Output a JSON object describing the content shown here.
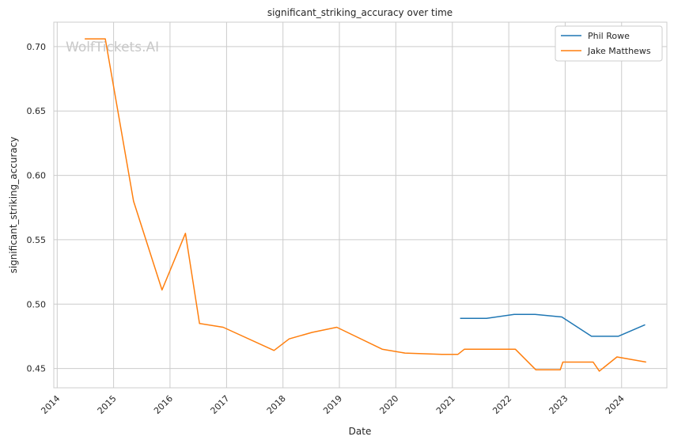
{
  "watermark": "WolfTickets.AI",
  "chart_data": {
    "type": "line",
    "title": "significant_striking_accuracy over time",
    "xlabel": "Date",
    "ylabel": "significant_striking_accuracy",
    "x_ticks": [
      "2014",
      "2015",
      "2016",
      "2017",
      "2018",
      "2019",
      "2020",
      "2021",
      "2022",
      "2023",
      "2024"
    ],
    "y_ticks": [
      "0.45",
      "0.50",
      "0.55",
      "0.60",
      "0.65",
      "0.70"
    ],
    "xlim": [
      "2013-12-10",
      "2024-10-20"
    ],
    "ylim": [
      0.435,
      0.719
    ],
    "grid": true,
    "legend_position": "top-right",
    "series": [
      {
        "name": "Phil Rowe",
        "color": "#1f77b4",
        "points": [
          [
            "2021-02-20",
            0.489
          ],
          [
            "2021-08-10",
            0.489
          ],
          [
            "2022-02-05",
            0.492
          ],
          [
            "2022-06-20",
            0.492
          ],
          [
            "2022-12-10",
            0.49
          ],
          [
            "2023-06-20",
            0.475
          ],
          [
            "2023-12-10",
            0.475
          ],
          [
            "2024-06-01",
            0.484
          ]
        ]
      },
      {
        "name": "Jake Matthews",
        "color": "#ff7f0e",
        "points": [
          [
            "2014-06-28",
            0.706
          ],
          [
            "2014-11-08",
            0.706
          ],
          [
            "2015-05-10",
            0.58
          ],
          [
            "2015-11-10",
            0.511
          ],
          [
            "2016-04-10",
            0.555
          ],
          [
            "2016-07-10",
            0.485
          ],
          [
            "2016-12-10",
            0.482
          ],
          [
            "2017-11-04",
            0.464
          ],
          [
            "2018-02-10",
            0.473
          ],
          [
            "2018-07-08",
            0.478
          ],
          [
            "2018-12-15",
            0.482
          ],
          [
            "2019-10-05",
            0.465
          ],
          [
            "2020-02-29",
            0.462
          ],
          [
            "2020-10-24",
            0.461
          ],
          [
            "2021-02-06",
            0.461
          ],
          [
            "2021-03-20",
            0.465
          ],
          [
            "2022-02-12",
            0.465
          ],
          [
            "2022-06-25",
            0.449
          ],
          [
            "2022-11-30",
            0.449
          ],
          [
            "2022-12-17",
            0.455
          ],
          [
            "2023-07-01",
            0.455
          ],
          [
            "2023-08-10",
            0.448
          ],
          [
            "2023-12-02",
            0.459
          ],
          [
            "2024-06-08",
            0.455
          ]
        ]
      }
    ]
  }
}
